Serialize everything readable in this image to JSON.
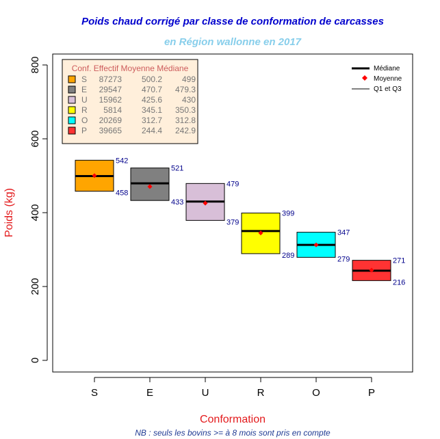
{
  "chart_data": {
    "type": "boxplot",
    "title": "Poids chaud corrigé par classe de conformation de carcasses",
    "subtitle": "en Région wallonne en 2017",
    "xlabel": "Conformation",
    "ylabel": "Poids (kg)",
    "footnote": "NB : seuls les bovins >= à 8 mois sont pris en compte",
    "ylim": [
      0,
      800
    ],
    "yticks": [
      "0",
      "200",
      "400",
      "600",
      "800"
    ],
    "categories": [
      "S",
      "E",
      "U",
      "R",
      "O",
      "P"
    ],
    "boxes": [
      {
        "class": "S",
        "q1": 458,
        "q3": 542,
        "median": 499,
        "mean": 500.2,
        "effectif": 87273,
        "q1_label": "458",
        "q3_label": "542",
        "color": "#FFA500"
      },
      {
        "class": "E",
        "q1": 433,
        "q3": 521,
        "median": 479.3,
        "mean": 470.7,
        "effectif": 29547,
        "q1_label": "433",
        "q3_label": "521",
        "color": "#808080"
      },
      {
        "class": "U",
        "q1": 379,
        "q3": 479,
        "median": 430,
        "mean": 425.6,
        "effectif": 15962,
        "q1_label": "379",
        "q3_label": "479",
        "color": "#D8BFD8"
      },
      {
        "class": "R",
        "q1": 289,
        "q3": 399,
        "median": 350.3,
        "mean": 345.1,
        "effectif": 5814,
        "q1_label": "289",
        "q3_label": "399",
        "color": "#FFFF00"
      },
      {
        "class": "O",
        "q1": 279,
        "q3": 347,
        "median": 312.8,
        "mean": 312.7,
        "effectif": 20269,
        "q1_label": "279",
        "q3_label": "347",
        "color": "#00FFFF"
      },
      {
        "class": "P",
        "q1": 216,
        "q3": 271,
        "median": 242.9,
        "mean": 244.4,
        "effectif": 39665,
        "q1_label": "216",
        "q3_label": "271",
        "color": "#FF3333"
      }
    ],
    "table": {
      "header": "Conf. Effectif Moyenne Médiane",
      "rows": [
        {
          "conf": "S",
          "effectif": "87273",
          "moyenne": "500.2",
          "mediane": "499",
          "color": "#FFA500"
        },
        {
          "conf": "E",
          "effectif": "29547",
          "moyenne": "470.7",
          "mediane": "479.3",
          "color": "#808080"
        },
        {
          "conf": "U",
          "effectif": "15962",
          "moyenne": "425.6",
          "mediane": "430",
          "color": "#D8BFD8"
        },
        {
          "conf": "R",
          "effectif": "5814",
          "moyenne": "345.1",
          "mediane": "350.3",
          "color": "#FFFF00"
        },
        {
          "conf": "O",
          "effectif": "20269",
          "moyenne": "312.7",
          "mediane": "312.8",
          "color": "#00FFFF"
        },
        {
          "conf": "P",
          "effectif": "39665",
          "moyenne": "244.4",
          "mediane": "242.9",
          "color": "#FF3333"
        }
      ]
    },
    "legend": {
      "position": "top-right",
      "items": [
        {
          "label": "Médiane",
          "symbol": "thick-line"
        },
        {
          "label": "Moyenne",
          "symbol": "red-diamond"
        },
        {
          "label": "Q1 et Q3",
          "symbol": "thin-line"
        }
      ]
    },
    "colors": {
      "title": "#0000CD",
      "subtitle": "#87CEEB",
      "axis_label": "#E31A1C",
      "value_label": "#00008B",
      "table_background": "#FFEFDB",
      "table_header": "#CD5C5C",
      "table_text": "#777777",
      "mean_marker": "#FF0000"
    }
  }
}
